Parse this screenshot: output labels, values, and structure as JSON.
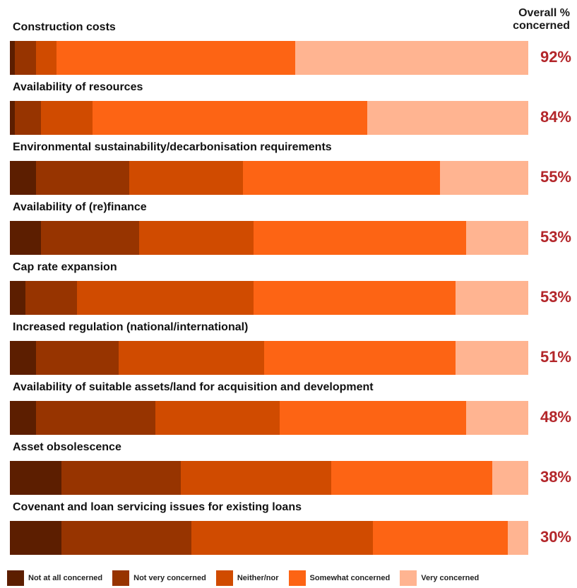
{
  "chart_data": {
    "type": "bar",
    "orientation": "horizontal",
    "stacked": true,
    "value_column_header": "Overall % concerned",
    "xlim": [
      0,
      100
    ],
    "categories": [
      "Construction costs",
      "Availability of resources",
      "Environmental sustainability/decarbonisation requirements",
      "Availability of (re)finance",
      "Cap rate expansion",
      "Increased regulation (national/international)",
      "Availability of suitable assets/land for acquisition and development",
      "Asset obsolescence",
      "Covenant and loan servicing issues for existing loans"
    ],
    "overall_labels": [
      "92%",
      "84%",
      "55%",
      "53%",
      "53%",
      "51%",
      "48%",
      "38%",
      "30%"
    ],
    "overall_values": [
      92,
      84,
      55,
      53,
      53,
      51,
      48,
      38,
      30
    ],
    "series": [
      {
        "name": "Not at all concerned",
        "color": "#5c1e00",
        "values": [
          1,
          1,
          5,
          6,
          3,
          5,
          5,
          10,
          10
        ]
      },
      {
        "name": "Not very concerned",
        "color": "#973400",
        "values": [
          4,
          5,
          18,
          19,
          10,
          16,
          23,
          23,
          25
        ]
      },
      {
        "name": "Neither/nor",
        "color": "#d04b00",
        "values": [
          4,
          10,
          22,
          22,
          34,
          28,
          24,
          29,
          35
        ]
      },
      {
        "name": "Somewhat concerned",
        "color": "#fd6414",
        "values": [
          46,
          53,
          38,
          41,
          39,
          37,
          36,
          31,
          26
        ]
      },
      {
        "name": "Very concerned",
        "color": "#ffb491",
        "values": [
          45,
          31,
          17,
          12,
          14,
          14,
          12,
          7,
          4
        ]
      }
    ],
    "legend_position": "bottom",
    "grid": false
  }
}
